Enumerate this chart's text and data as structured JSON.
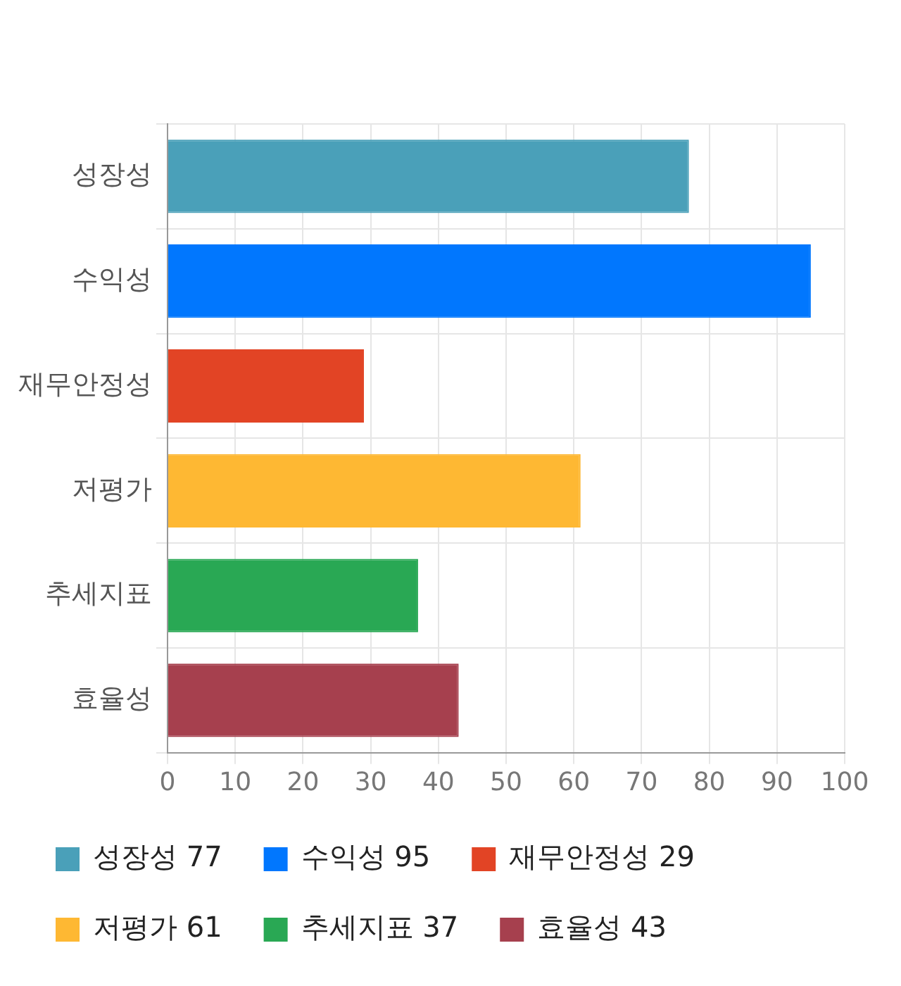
{
  "chart_data": {
    "type": "bar",
    "orientation": "horizontal",
    "categories": [
      "성장성",
      "수익성",
      "재무안정성",
      "저평가",
      "추세지표",
      "효율성"
    ],
    "series": [
      {
        "name": "성장성 77",
        "color": "#4aa0b9",
        "values": [
          77,
          null,
          null,
          null,
          null,
          null
        ]
      },
      {
        "name": "수익성 95",
        "color": "#0177fe",
        "values": [
          null,
          95,
          null,
          null,
          null,
          null
        ]
      },
      {
        "name": "재무안정성 29",
        "color": "#e24425",
        "values": [
          null,
          null,
          29,
          null,
          null,
          null
        ]
      },
      {
        "name": "저평가 61",
        "color": "#feb833",
        "values": [
          null,
          null,
          null,
          61,
          null,
          null
        ]
      },
      {
        "name": "추세지표 37",
        "color": "#29a854",
        "values": [
          null,
          null,
          null,
          null,
          37,
          null
        ]
      },
      {
        "name": "효율성 43",
        "color": "#a6404e",
        "values": [
          null,
          null,
          null,
          null,
          null,
          43
        ]
      }
    ],
    "xlim": [
      0,
      100
    ],
    "xticks": [
      0,
      10,
      20,
      30,
      40,
      50,
      60,
      70,
      80,
      90,
      100
    ],
    "grid": true,
    "legend": "bottom"
  }
}
